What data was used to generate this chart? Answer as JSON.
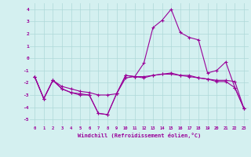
{
  "xlabel": "Windchill (Refroidissement éolien,°C)",
  "x": [
    0,
    1,
    2,
    3,
    4,
    5,
    6,
    7,
    8,
    9,
    10,
    11,
    12,
    13,
    14,
    15,
    16,
    17,
    18,
    19,
    20,
    21,
    22,
    23
  ],
  "line1": [
    -1.5,
    -3.3,
    -1.8,
    -2.5,
    -2.8,
    -2.9,
    -3.0,
    -4.5,
    -4.6,
    -2.9,
    -1.4,
    -1.5,
    -0.4,
    2.5,
    3.1,
    4.0,
    2.1,
    1.7,
    1.5,
    -1.2,
    -1.0,
    -0.3,
    -2.4,
    -4.1
  ],
  "line2": [
    -1.5,
    -3.3,
    -1.8,
    -2.5,
    -2.8,
    -3.0,
    -3.0,
    -4.5,
    -4.6,
    -2.9,
    -1.4,
    -1.5,
    -1.6,
    -1.4,
    -1.3,
    -1.3,
    -1.4,
    -1.4,
    -1.6,
    -1.7,
    -1.8,
    -1.8,
    -1.9,
    -4.1
  ],
  "line3": [
    -1.5,
    -3.3,
    -1.8,
    -2.3,
    -2.5,
    -2.7,
    -2.8,
    -3.0,
    -3.0,
    -2.9,
    -1.6,
    -1.5,
    -1.5,
    -1.4,
    -1.3,
    -1.2,
    -1.4,
    -1.5,
    -1.6,
    -1.7,
    -1.9,
    -1.9,
    -2.4,
    -4.1
  ],
  "ylim": [
    -5.5,
    4.5
  ],
  "yticks": [
    -5,
    -4,
    -3,
    -2,
    -1,
    0,
    1,
    2,
    3,
    4
  ],
  "line_color": "#990099",
  "bg_color": "#d4f0f0",
  "grid_color": "#aed8d8",
  "tick_color": "#990099",
  "label_color": "#990099"
}
